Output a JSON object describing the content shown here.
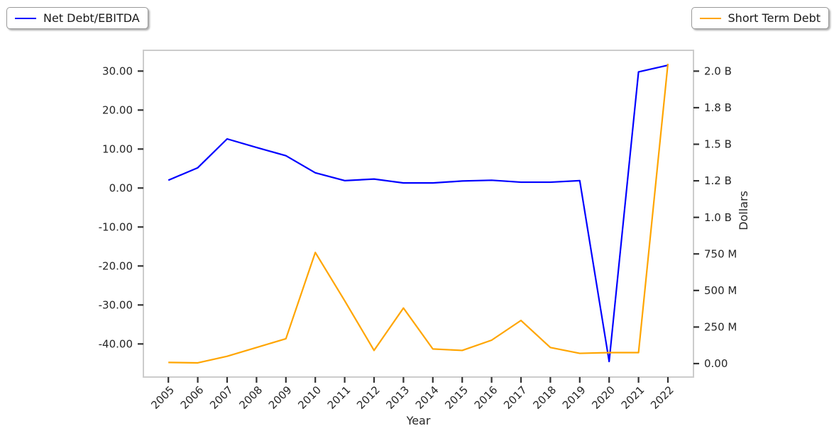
{
  "figure": {
    "background": "#ffffff",
    "legends": [
      {
        "label": "Net Debt/EBITDA",
        "color": "#0000ff",
        "position": "top-left"
      },
      {
        "label": "Short Term Debt",
        "color": "#ffa500",
        "position": "top-right"
      }
    ]
  },
  "chart_data": {
    "type": "line",
    "title": "",
    "xlabel": "Year",
    "ylabel_left": "",
    "ylabel_right": "Dollars",
    "grid": false,
    "x": [
      2005,
      2006,
      2007,
      2008,
      2009,
      2010,
      2011,
      2012,
      2013,
      2014,
      2015,
      2016,
      2017,
      2018,
      2019,
      2020,
      2021,
      2022
    ],
    "series": [
      {
        "name": "Net Debt/EBITDA",
        "axis": "left",
        "color": "#0000ff",
        "values": [
          2.0,
          5.2,
          12.6,
          10.4,
          8.3,
          3.9,
          1.9,
          2.3,
          1.3,
          1.3,
          1.8,
          2.0,
          1.5,
          1.5,
          1.9,
          -44.5,
          29.8,
          31.5
        ]
      },
      {
        "name": "Short Term Debt",
        "axis": "right",
        "color": "#ffa500",
        "unit": "USD",
        "values_millions": [
          8,
          5,
          50,
          110,
          170,
          760,
          430,
          90,
          380,
          100,
          90,
          160,
          295,
          110,
          70,
          75,
          75,
          2050
        ]
      }
    ],
    "left_axis": {
      "range_approx": [
        -48.4,
        35.3
      ],
      "ticks": [
        {
          "value": 30,
          "label": "30.00"
        },
        {
          "value": 20,
          "label": "20.00"
        },
        {
          "value": 10,
          "label": "10.00"
        },
        {
          "value": 0,
          "label": "0.00"
        },
        {
          "value": -10,
          "label": "-10.00"
        },
        {
          "value": -20,
          "label": "-20.00"
        },
        {
          "value": -30,
          "label": "-30.00"
        },
        {
          "value": -40,
          "label": "-40.00"
        }
      ]
    },
    "right_axis": {
      "range_millions_approx": [
        -92,
        2142
      ],
      "ticks": [
        {
          "millions": 2000,
          "label": "2.0 B"
        },
        {
          "millions": 1750,
          "label": "1.8 B"
        },
        {
          "millions": 1500,
          "label": "1.5 B"
        },
        {
          "millions": 1250,
          "label": "1.2 B"
        },
        {
          "millions": 1000,
          "label": "1.0 B"
        },
        {
          "millions": 750,
          "label": "750 M"
        },
        {
          "millions": 500,
          "label": "500 M"
        },
        {
          "millions": 250,
          "label": "250 M"
        },
        {
          "millions": 0,
          "label": "0.00"
        }
      ]
    },
    "legend_position": "outside top-left and top-right"
  }
}
